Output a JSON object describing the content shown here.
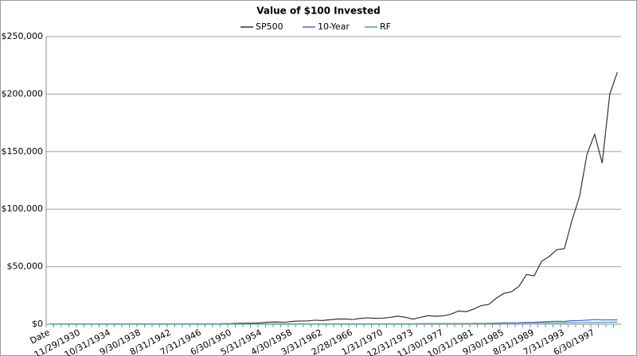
{
  "chart_data": {
    "type": "line",
    "title": "Value of $100 Invested",
    "categories": [
      "Date",
      null,
      null,
      null,
      "11/29/1930",
      null,
      null,
      null,
      "10/31/1934",
      null,
      null,
      null,
      "9/30/1938",
      null,
      null,
      null,
      "8/31/1942",
      null,
      null,
      null,
      "7/31/1946",
      null,
      null,
      null,
      "6/30/1950",
      null,
      null,
      null,
      "5/31/1954",
      null,
      null,
      null,
      "4/30/1958",
      null,
      null,
      null,
      "3/31/1962",
      null,
      null,
      null,
      "2/28/1966",
      null,
      null,
      null,
      "1/31/1970",
      null,
      null,
      null,
      "12/31/1973",
      null,
      null,
      null,
      "11/30/1977",
      null,
      null,
      null,
      "10/31/1981",
      null,
      null,
      null,
      "9/30/1985",
      null,
      null,
      null,
      "8/31/1989",
      null,
      null,
      null,
      "7/31/1993",
      null,
      null,
      null,
      "6/30/1997",
      null,
      null,
      null
    ],
    "series": [
      {
        "name": "SP500",
        "color": "#333333",
        "values": [
          100,
          130,
          170,
          150,
          110,
          80,
          70,
          110,
          110,
          150,
          200,
          130,
          170,
          170,
          150,
          130,
          160,
          200,
          240,
          330,
          300,
          300,
          320,
          420,
          500,
          750,
          900,
          880,
          1350,
          1800,
          1900,
          1700,
          2400,
          2800,
          2800,
          3500,
          3200,
          3900,
          4500,
          4600,
          4100,
          5000,
          5500,
          5100,
          5300,
          6000,
          7000,
          6000,
          4400,
          6000,
          7400,
          6900,
          7300,
          8700,
          11500,
          10900,
          13200,
          16200,
          17200,
          22600,
          26800,
          28200,
          32900,
          43300,
          42000,
          54700,
          58900,
          64800,
          65600,
          90200,
          111000,
          148000,
          165000,
          140000,
          200000,
          219000
        ]
      },
      {
        "name": "10-Year",
        "color": "#5a5ae0",
        "values": [
          100,
          105,
          110,
          115,
          120,
          125,
          130,
          135,
          140,
          148,
          155,
          160,
          165,
          170,
          175,
          178,
          182,
          186,
          190,
          195,
          200,
          200,
          202,
          207,
          212,
          212,
          215,
          218,
          226,
          228,
          225,
          235,
          232,
          230,
          250,
          255,
          258,
          265,
          270,
          280,
          275,
          285,
          280,
          275,
          310,
          340,
          360,
          370,
          380,
          440,
          510,
          510,
          500,
          490,
          480,
          500,
          700,
          720,
          800,
          1000,
          1250,
          1250,
          1350,
          1600,
          1700,
          2000,
          2350,
          2550,
          2400,
          3100,
          3150,
          3550,
          4000,
          3700,
          3800,
          3800
        ]
      },
      {
        "name": "RF",
        "color": "#3aa6a6",
        "values": [
          100,
          103,
          107,
          112,
          116,
          119,
          120,
          121,
          121,
          121,
          121,
          121,
          122,
          122,
          122,
          122,
          122,
          123,
          123,
          124,
          124,
          125,
          126,
          127,
          129,
          131,
          133,
          135,
          137,
          139,
          143,
          147,
          152,
          156,
          161,
          165,
          170,
          175,
          181,
          187,
          195,
          203,
          211,
          222,
          237,
          247,
          257,
          276,
          298,
          316,
          333,
          350,
          375,
          410,
          456,
          520,
          583,
          635,
          700,
          774,
          829,
          880,
          934,
          1011,
          1090,
          1150,
          1190,
          1230,
          1290,
          1360,
          1430,
          1500,
          1570,
          1650,
          1730,
          1830
        ]
      }
    ],
    "ylim": [
      0,
      250000
    ],
    "yticks": [
      {
        "value": 0,
        "label": "$0"
      },
      {
        "value": 50000,
        "label": "$50,000"
      },
      {
        "value": 100000,
        "label": "$100,000"
      },
      {
        "value": 150000,
        "label": "$150,000"
      },
      {
        "value": 200000,
        "label": "$200,000"
      },
      {
        "value": 250000,
        "label": "$250,000"
      }
    ],
    "grid": true,
    "legend": "top"
  }
}
